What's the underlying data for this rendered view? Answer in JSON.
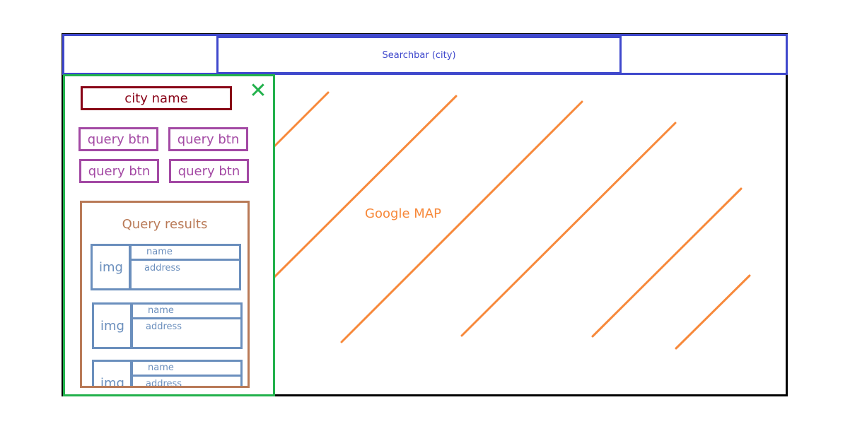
{
  "header": {
    "searchbar_label": "Searchbar (city)"
  },
  "map": {
    "label": "Google MAP"
  },
  "panel": {
    "city_name": "city name",
    "close_glyph": "✕",
    "query_buttons": [
      "query btn",
      "query btn",
      "query btn",
      "query btn"
    ],
    "results": {
      "title": "Query results",
      "items": [
        {
          "img": "img",
          "name": "name",
          "address": "address"
        },
        {
          "img": "img",
          "name": "name",
          "address": "address"
        },
        {
          "img": "img",
          "name": "name",
          "address": "address"
        }
      ]
    }
  },
  "colors": {
    "frame": "#000000",
    "header": "#3f48cc",
    "map": "#f7893b",
    "panel": "#22b14c",
    "city": "#880015",
    "buttons": "#a349a4",
    "results": "#b97a57",
    "items": "#6b8fbd"
  }
}
